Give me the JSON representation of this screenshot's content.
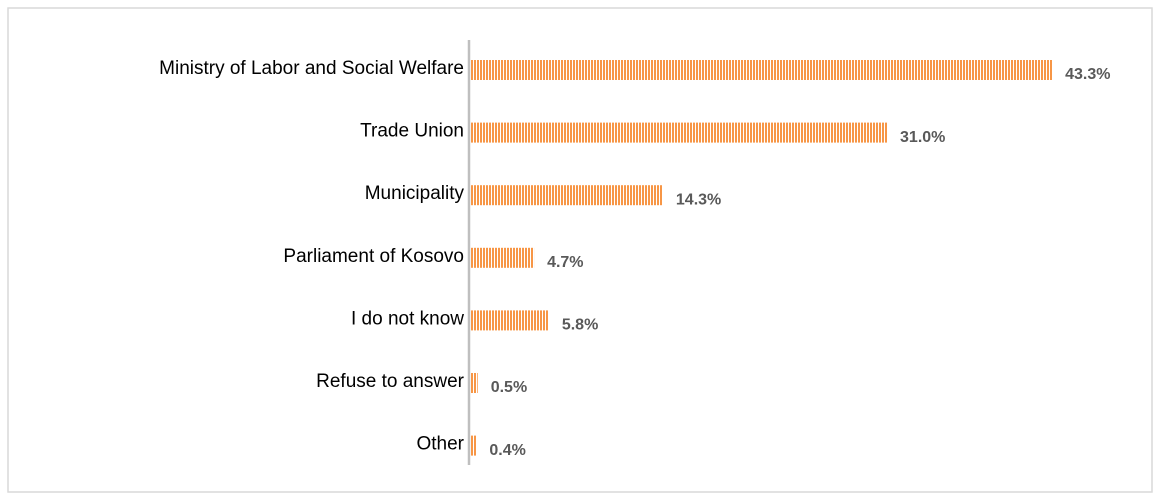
{
  "chart_data": {
    "type": "bar",
    "orientation": "horizontal",
    "categories": [
      "Ministry of Labor and Social Welfare",
      "Trade Union",
      "Municipality",
      "Parliament of Kosovo",
      "I do not know",
      "Refuse to answer",
      "Other"
    ],
    "values": [
      43.3,
      31.0,
      14.3,
      4.7,
      5.8,
      0.5,
      0.4
    ],
    "value_labels": [
      "43.3%",
      "31.0%",
      "14.3%",
      "4.7%",
      "5.8%",
      "0.5%",
      "0.4%"
    ],
    "color": "#f79646"
  }
}
